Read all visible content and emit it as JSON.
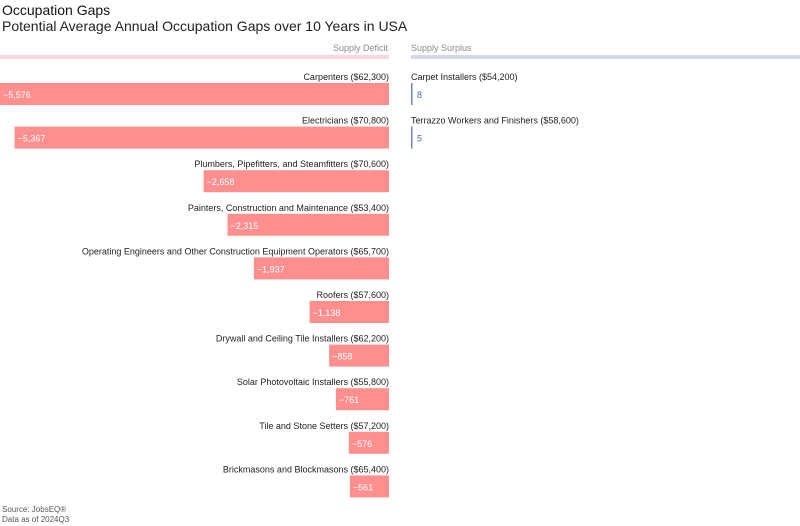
{
  "chart_data": {
    "type": "bar",
    "title": "Occupation Gaps",
    "subtitle": "Potential Average Annual Occupation Gaps over 10 Years in USA",
    "deficit_header": "Supply Deficit",
    "surplus_header": "Supply Surplus",
    "deficit": [
      {
        "label": "Carpenters ($62,300)",
        "value": -5576,
        "value_label": "−5,576"
      },
      {
        "label": "Electricians ($70,800)",
        "value": -5367,
        "value_label": "−5,367"
      },
      {
        "label": "Plumbers, Pipefitters, and Steamfitters ($70,600)",
        "value": -2658,
        "value_label": "−2,658"
      },
      {
        "label": "Painters, Construction and Maintenance ($53,400)",
        "value": -2315,
        "value_label": "−2,315"
      },
      {
        "label": "Operating Engineers and Other Construction Equipment Operators ($65,700)",
        "value": -1937,
        "value_label": "−1,937"
      },
      {
        "label": "Roofers ($57,600)",
        "value": -1138,
        "value_label": "−1,138"
      },
      {
        "label": "Drywall and Ceiling Tile Installers ($62,200)",
        "value": -858,
        "value_label": "−858"
      },
      {
        "label": "Solar Photovoltaic Installers ($55,800)",
        "value": -761,
        "value_label": "−761"
      },
      {
        "label": "Tile and Stone Setters ($57,200)",
        "value": -576,
        "value_label": "−576"
      },
      {
        "label": "Brickmasons and Blockmasons ($65,400)",
        "value": -561,
        "value_label": "−561"
      }
    ],
    "surplus": [
      {
        "label": "Carpet Installers ($54,200)",
        "value": 8,
        "value_label": "8"
      },
      {
        "label": "Terrazzo Workers and Finishers ($58,600)",
        "value": 5,
        "value_label": "5"
      }
    ],
    "colors": {
      "deficit_bar": "#ff8f8f",
      "deficit_header_bar": "#fbd5d8",
      "surplus_bar": "#6f86c9",
      "surplus_header_bar": "#d3d9e6",
      "surplus_value_text": "#4a67b3"
    }
  },
  "footer": {
    "source": "Source: JobsEQ®",
    "as_of": "Data as of 2024Q3"
  }
}
